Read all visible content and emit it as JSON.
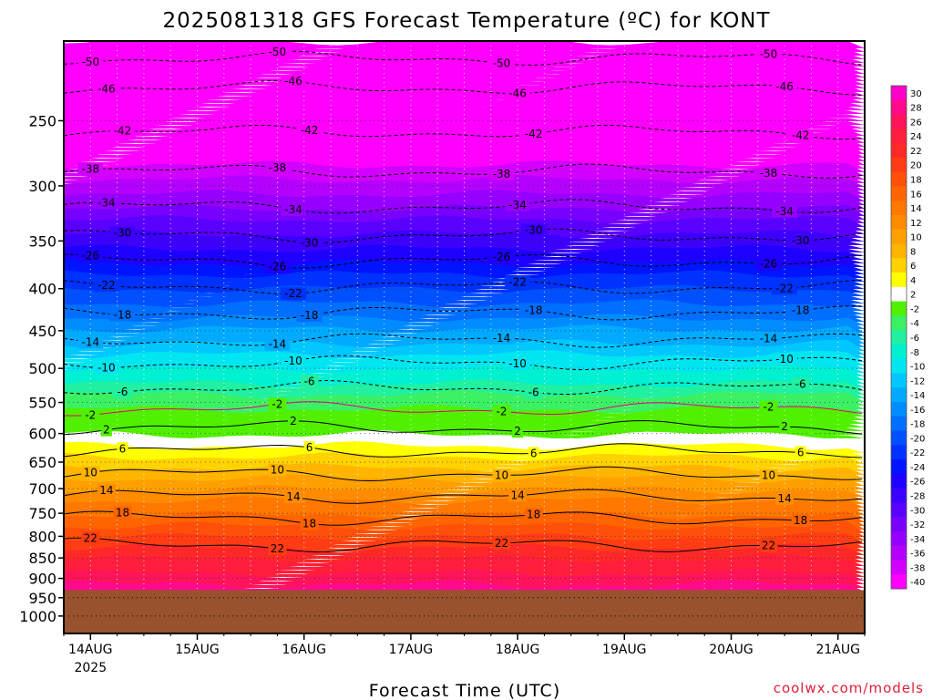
{
  "chart_data": {
    "type": "heatmap",
    "title": "2025081318 GFS Forecast Temperature (ºC) for KONT",
    "xlabel": "Forecast Time (UTC)",
    "ylabel": "",
    "source": "coolwx.com/models",
    "x_ticks": [
      {
        "t": 0.25,
        "label": "14AUG",
        "sub": "2025"
      },
      {
        "t": 1.25,
        "label": "15AUG",
        "sub": ""
      },
      {
        "t": 2.25,
        "label": "16AUG",
        "sub": ""
      },
      {
        "t": 3.25,
        "label": "17AUG",
        "sub": ""
      },
      {
        "t": 4.25,
        "label": "18AUG",
        "sub": ""
      },
      {
        "t": 5.25,
        "label": "19AUG",
        "sub": ""
      },
      {
        "t": 6.25,
        "label": "20AUG",
        "sub": ""
      },
      {
        "t": 7.25,
        "label": "21AUG",
        "sub": ""
      }
    ],
    "xlim": [
      0,
      7.5
    ],
    "y_ticks": [
      250,
      300,
      350,
      400,
      450,
      500,
      550,
      600,
      650,
      700,
      750,
      800,
      850,
      900,
      950,
      1000
    ],
    "ylim": [
      200,
      1050
    ],
    "y_scale": "log-pressure",
    "surface_pressure": 930,
    "colorbar": {
      "levels": [
        30,
        28,
        26,
        24,
        22,
        20,
        18,
        16,
        14,
        12,
        10,
        8,
        6,
        4,
        2,
        -2,
        -4,
        -6,
        -8,
        -10,
        -12,
        -14,
        -16,
        -18,
        -20,
        -22,
        -24,
        -26,
        -28,
        -30,
        -32,
        -34,
        -36,
        -38,
        -40
      ],
      "colors": [
        "#ff00c8",
        "#ff0a8c",
        "#ff145a",
        "#ff1e3c",
        "#ff2828",
        "#ff3c14",
        "#ff500a",
        "#ff6400",
        "#ff7800",
        "#ff8c00",
        "#ffa000",
        "#ffb400",
        "#ffd200",
        "#ffff00",
        "#ffffff",
        "#50f000",
        "#3cf064",
        "#20f0a0",
        "#00f0d2",
        "#00e6f0",
        "#00c8ff",
        "#00aaff",
        "#008cff",
        "#006eff",
        "#0050ff",
        "#0032ff",
        "#0014ff",
        "#1e00ff",
        "#3c00ff",
        "#5a00ff",
        "#7800ff",
        "#9600ff",
        "#b400ff",
        "#d200ff",
        "#ff00ff"
      ]
    },
    "profile": [
      {
        "p": 200,
        "T": -56
      },
      {
        "p": 250,
        "T": -44
      },
      {
        "p": 300,
        "T": -35
      },
      {
        "p": 350,
        "T": -27
      },
      {
        "p": 400,
        "T": -20
      },
      {
        "p": 450,
        "T": -14
      },
      {
        "p": 500,
        "T": -8
      },
      {
        "p": 550,
        "T": -3
      },
      {
        "p": 600,
        "T": 2
      },
      {
        "p": 650,
        "T": 7
      },
      {
        "p": 700,
        "T": 12
      },
      {
        "p": 750,
        "T": 16
      },
      {
        "p": 800,
        "T": 20
      },
      {
        "p": 850,
        "T": 24
      },
      {
        "p": 900,
        "T": 27
      },
      {
        "p": 930,
        "T": 29
      }
    ],
    "contours": [
      {
        "label": "-50",
        "p": 210
      },
      {
        "label": "-46",
        "p": 228
      },
      {
        "label": "-42",
        "p": 258
      },
      {
        "label": "-38",
        "p": 288
      },
      {
        "label": "-34",
        "p": 318
      },
      {
        "label": "-30",
        "p": 345
      },
      {
        "label": "-26",
        "p": 370
      },
      {
        "label": "-22",
        "p": 398
      },
      {
        "label": "-18",
        "p": 428
      },
      {
        "label": "-14",
        "p": 462
      },
      {
        "label": "-10",
        "p": 492
      },
      {
        "label": "-6",
        "p": 528
      },
      {
        "label": "-2",
        "p": 560
      },
      {
        "label": "2",
        "p": 590
      },
      {
        "label": "6",
        "p": 630
      },
      {
        "label": "10",
        "p": 672
      },
      {
        "label": "14",
        "p": 715
      },
      {
        "label": "18",
        "p": 760
      },
      {
        "label": "22",
        "p": 820
      }
    ]
  }
}
